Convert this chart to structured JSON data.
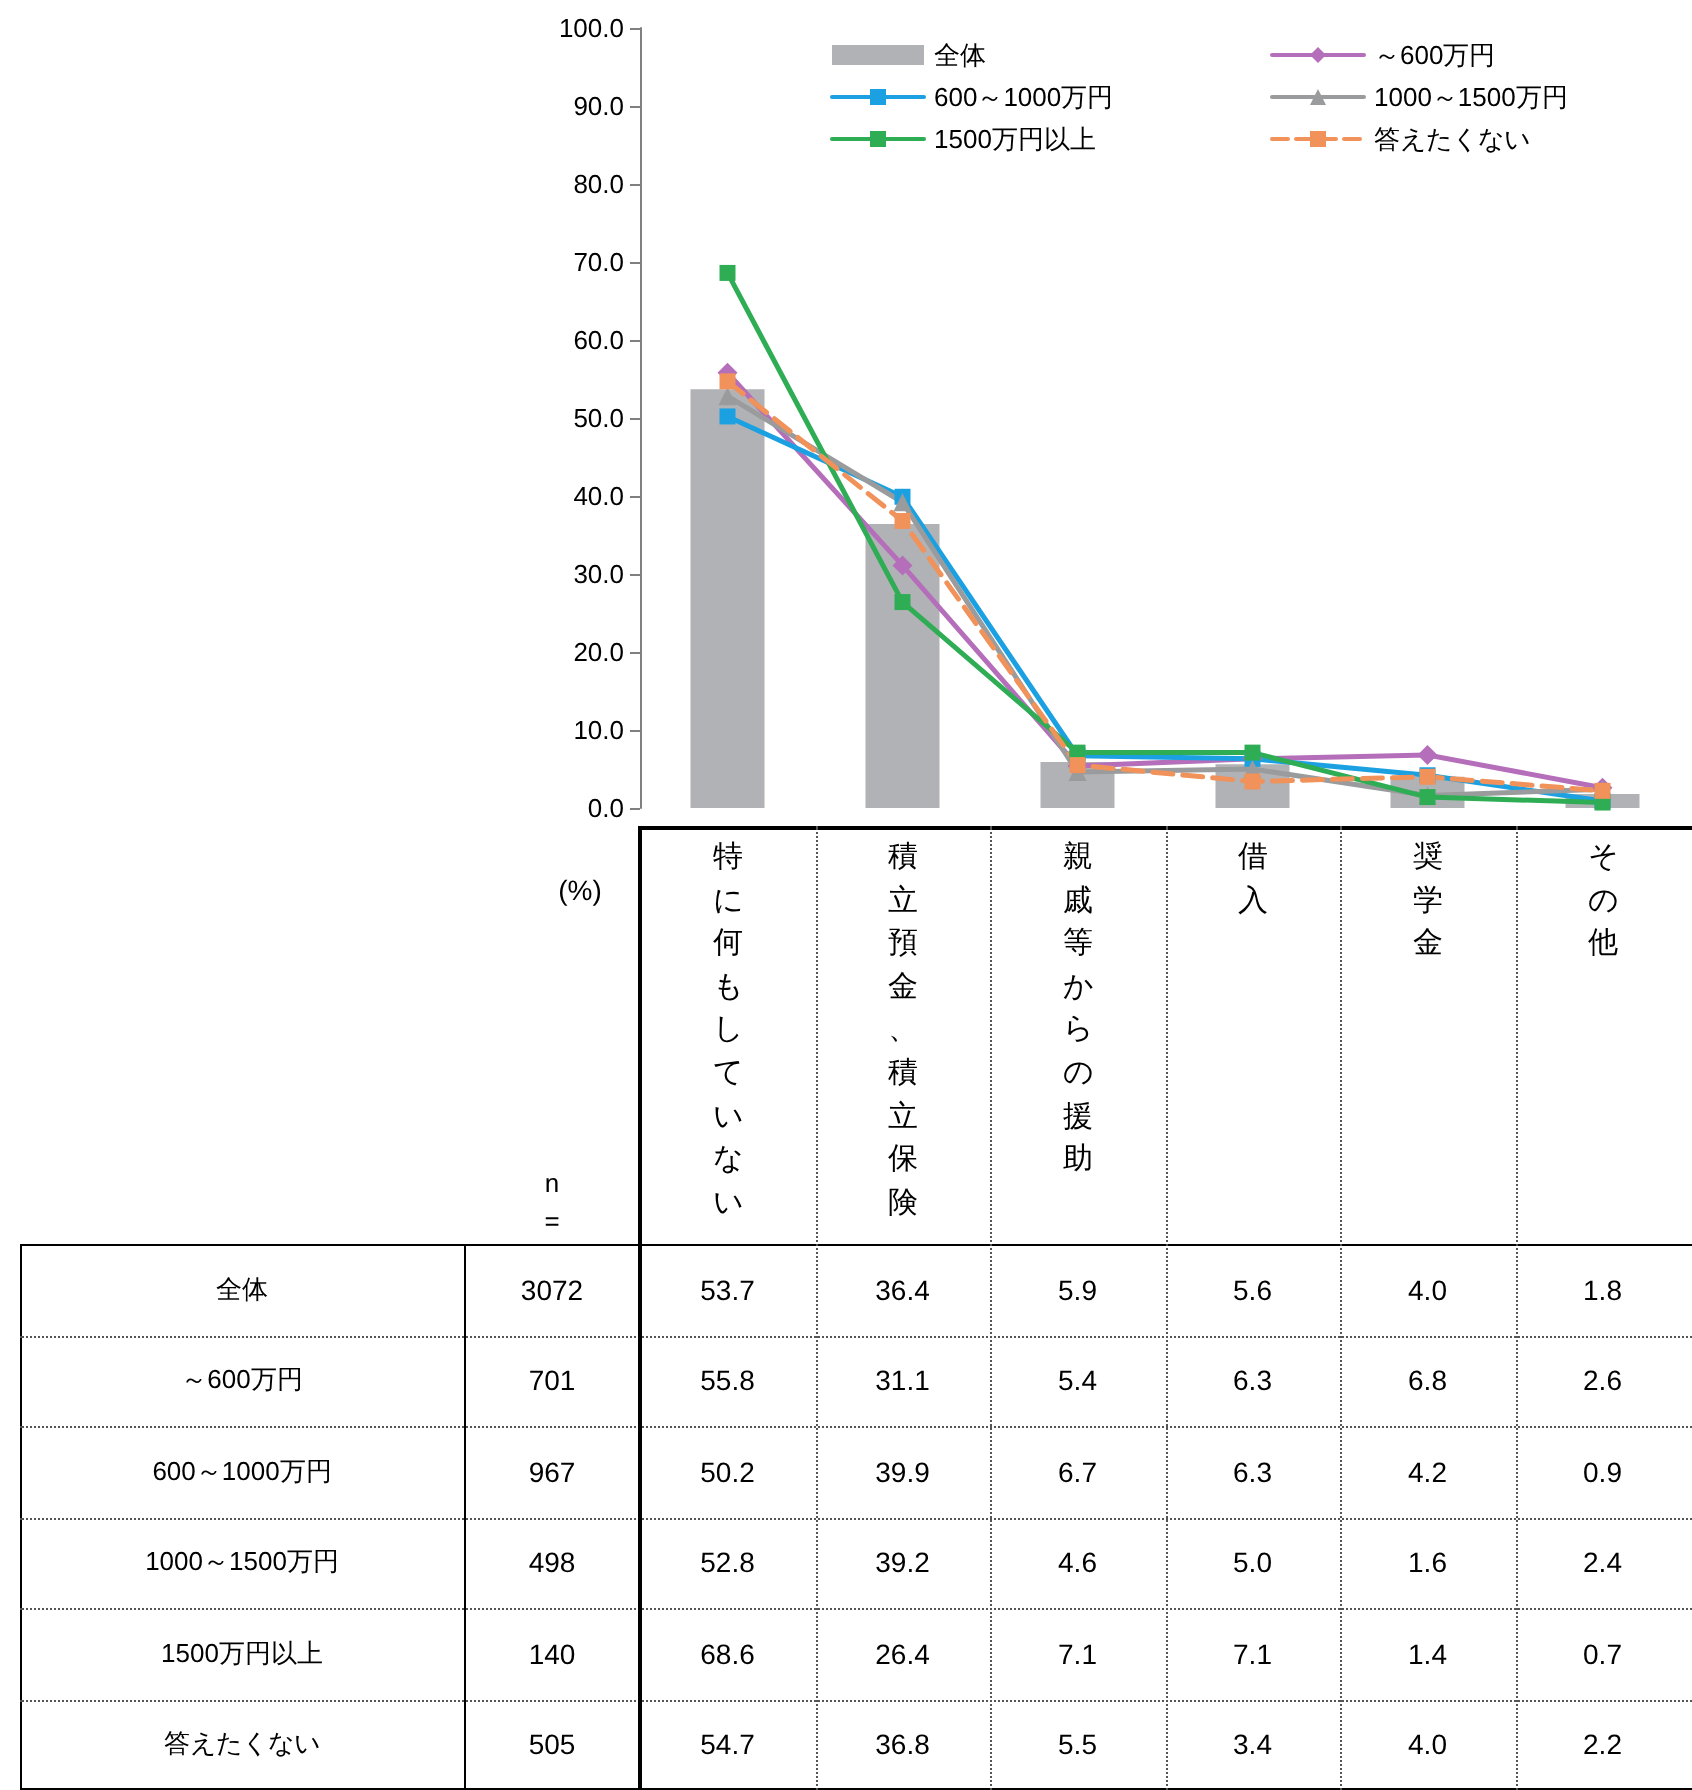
{
  "chart_data": {
    "type": "bar",
    "ylabel": "(%)",
    "categories": [
      "特に何もしていない",
      "積立預金、積立保険",
      "親戚等からの援助",
      "借入",
      "奨学金",
      "その他"
    ],
    "ylim": [
      0,
      100
    ],
    "yticks": [
      {
        "value": 0,
        "label": "0.0"
      },
      {
        "value": 10,
        "label": "10.0"
      },
      {
        "value": 20,
        "label": "20.0"
      },
      {
        "value": 30,
        "label": "30.0"
      },
      {
        "value": 40,
        "label": "40.0"
      },
      {
        "value": 50,
        "label": "50.0"
      },
      {
        "value": 60,
        "label": "60.0"
      },
      {
        "value": 70,
        "label": "70.0"
      },
      {
        "value": 80,
        "label": "80.0"
      },
      {
        "value": 90,
        "label": "90.0"
      },
      {
        "value": 100,
        "label": "100.0"
      }
    ],
    "legend": "top",
    "series": [
      {
        "name": "全体",
        "color": "#b1b2b5",
        "values": [
          53.7,
          36.4,
          5.9,
          5.6,
          4.0,
          1.8
        ],
        "value_labels": [
          "53.7",
          "36.4",
          "5.9",
          "5.6",
          "4.0",
          "1.8"
        ]
      },
      {
        "name": "～600万円",
        "type": "line",
        "color": "#b56fba",
        "marker": "diamond",
        "line_style": "solid",
        "values": [
          55.8,
          31.1,
          5.4,
          6.3,
          6.8,
          2.6
        ],
        "value_labels": [
          "55.8",
          "31.1",
          "5.4",
          "6.3",
          "6.8",
          "2.6"
        ]
      },
      {
        "name": "600～1000万円",
        "type": "line",
        "color": "#1ba1e2",
        "marker": "square",
        "line_style": "solid",
        "values": [
          50.2,
          39.9,
          6.7,
          6.3,
          4.2,
          0.9
        ],
        "value_labels": [
          "50.2",
          "39.9",
          "6.7",
          "6.3",
          "4.2",
          "0.9"
        ]
      },
      {
        "name": "1000～1500万円",
        "type": "line",
        "color": "#9a9b9d",
        "marker": "triangle",
        "line_style": "solid",
        "values": [
          52.8,
          39.2,
          4.6,
          5.0,
          1.6,
          2.4
        ],
        "value_labels": [
          "52.8",
          "39.2",
          "4.6",
          "5.0",
          "1.6",
          "2.4"
        ]
      },
      {
        "name": "1500万円以上",
        "type": "line",
        "color": "#2fad55",
        "marker": "square",
        "line_style": "solid",
        "values": [
          68.6,
          26.4,
          7.1,
          7.1,
          1.4,
          0.7
        ],
        "value_labels": [
          "68.6",
          "26.4",
          "7.1",
          "7.1",
          "1.4",
          "0.7"
        ]
      },
      {
        "name": "答えたくない",
        "type": "line",
        "color": "#f0925a",
        "marker": "square",
        "line_style": "dashed",
        "values": [
          54.7,
          36.8,
          5.5,
          3.4,
          4.0,
          2.2
        ],
        "value_labels": [
          "54.7",
          "36.8",
          "5.5",
          "3.4",
          "4.0",
          "2.2"
        ]
      }
    ],
    "annotations": [
      "n =",
      "3072",
      "701",
      "967",
      "498",
      "140",
      "505"
    ]
  }
}
